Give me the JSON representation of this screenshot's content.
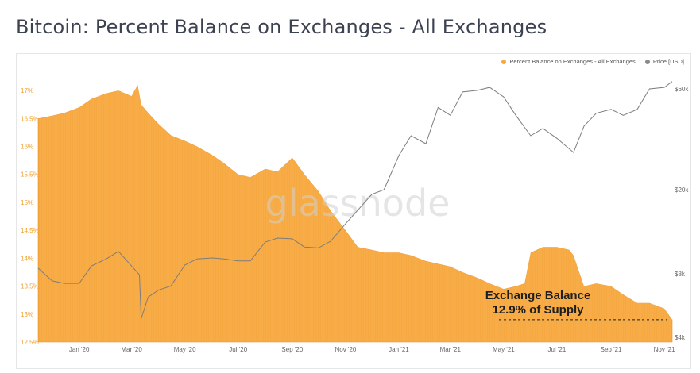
{
  "title": "Bitcoin: Percent Balance on Exchanges - All Exchanges",
  "watermark": "glassnode",
  "legend": [
    {
      "label": "Percent Balance on Exchanges - All Exchanges",
      "color": "#f7a941"
    },
    {
      "label": "Price [USD]",
      "color": "#8a8a8a"
    }
  ],
  "annotation": {
    "line1": "Exchange Balance",
    "line2": "12.9% of Supply"
  },
  "chart_data": {
    "type": "area",
    "x_ticks": [
      "Jan '20",
      "Mar '20",
      "May '20",
      "Jul '20",
      "Sep '20",
      "Nov '20",
      "Jan '21",
      "Mar '21",
      "May '21",
      "Jul '21",
      "Sep '21",
      "Nov '21"
    ],
    "left_axis": {
      "ticks": [
        "12.5%",
        "13%",
        "13.5%",
        "14%",
        "14.5%",
        "15%",
        "15.5%",
        "16%",
        "16.5%",
        "17%"
      ],
      "ylim": [
        12.5,
        17.2
      ]
    },
    "right_axis": {
      "ticks": [
        "$4k",
        "$8k",
        "$20k",
        "$60k"
      ],
      "scale": "log"
    },
    "grid": false,
    "legend_position": "top-right",
    "series": [
      {
        "name": "Percent Balance on Exchanges - All Exchanges",
        "type": "area",
        "axis": "left",
        "color": "#f7a941",
        "x": [
          "2019-11-15",
          "2019-12-01",
          "2019-12-15",
          "2020-01-01",
          "2020-01-15",
          "2020-02-01",
          "2020-02-15",
          "2020-03-01",
          "2020-03-08",
          "2020-03-12",
          "2020-03-20",
          "2020-04-01",
          "2020-04-15",
          "2020-05-01",
          "2020-05-15",
          "2020-06-01",
          "2020-06-15",
          "2020-07-01",
          "2020-07-15",
          "2020-08-01",
          "2020-08-15",
          "2020-09-01",
          "2020-09-15",
          "2020-10-01",
          "2020-10-15",
          "2020-11-01",
          "2020-11-15",
          "2020-12-01",
          "2020-12-15",
          "2021-01-01",
          "2021-01-15",
          "2021-02-01",
          "2021-02-15",
          "2021-03-01",
          "2021-03-15",
          "2021-04-01",
          "2021-04-15",
          "2021-05-01",
          "2021-05-15",
          "2021-05-25",
          "2021-06-01",
          "2021-06-15",
          "2021-07-01",
          "2021-07-15",
          "2021-07-20",
          "2021-08-01",
          "2021-08-15",
          "2021-09-01",
          "2021-09-15",
          "2021-10-01",
          "2021-10-15",
          "2021-11-01",
          "2021-11-10"
        ],
        "values": [
          16.5,
          16.55,
          16.6,
          16.7,
          16.85,
          16.95,
          17.0,
          16.9,
          17.1,
          16.75,
          16.6,
          16.4,
          16.2,
          16.1,
          16.0,
          15.85,
          15.7,
          15.5,
          15.45,
          15.6,
          15.55,
          15.8,
          15.5,
          15.2,
          14.85,
          14.5,
          14.2,
          14.15,
          14.1,
          14.1,
          14.05,
          13.95,
          13.9,
          13.85,
          13.75,
          13.65,
          13.55,
          13.45,
          13.5,
          13.55,
          14.1,
          14.2,
          14.2,
          14.15,
          14.05,
          13.5,
          13.55,
          13.5,
          13.35,
          13.2,
          13.2,
          13.1,
          12.9
        ]
      },
      {
        "name": "Price [USD]",
        "type": "line",
        "axis": "right",
        "color": "#8a8a8a",
        "x": [
          "2019-11-15",
          "2019-12-01",
          "2019-12-15",
          "2020-01-01",
          "2020-01-15",
          "2020-02-01",
          "2020-02-15",
          "2020-03-01",
          "2020-03-10",
          "2020-03-12",
          "2020-03-20",
          "2020-04-01",
          "2020-04-15",
          "2020-05-01",
          "2020-05-15",
          "2020-06-01",
          "2020-06-15",
          "2020-07-01",
          "2020-07-15",
          "2020-08-01",
          "2020-08-15",
          "2020-09-01",
          "2020-09-15",
          "2020-10-01",
          "2020-10-15",
          "2020-11-01",
          "2020-11-15",
          "2020-12-01",
          "2020-12-15",
          "2021-01-01",
          "2021-01-15",
          "2021-02-01",
          "2021-02-15",
          "2021-03-01",
          "2021-03-15",
          "2021-04-01",
          "2021-04-15",
          "2021-05-01",
          "2021-05-15",
          "2021-06-01",
          "2021-06-15",
          "2021-07-01",
          "2021-07-20",
          "2021-08-01",
          "2021-08-15",
          "2021-09-01",
          "2021-09-15",
          "2021-10-01",
          "2021-10-15",
          "2021-11-01",
          "2021-11-10"
        ],
        "values": [
          8500,
          7400,
          7200,
          7200,
          8700,
          9400,
          10200,
          8700,
          7900,
          4900,
          6200,
          6700,
          7000,
          8800,
          9400,
          9500,
          9400,
          9200,
          9200,
          11300,
          11800,
          11700,
          10700,
          10600,
          11400,
          13800,
          16000,
          19000,
          20000,
          29000,
          36000,
          33000,
          49000,
          45000,
          58000,
          59000,
          61000,
          55000,
          45000,
          36000,
          39000,
          35000,
          30000,
          40000,
          46000,
          48000,
          45000,
          48000,
          60000,
          61000,
          65000
        ]
      }
    ]
  }
}
